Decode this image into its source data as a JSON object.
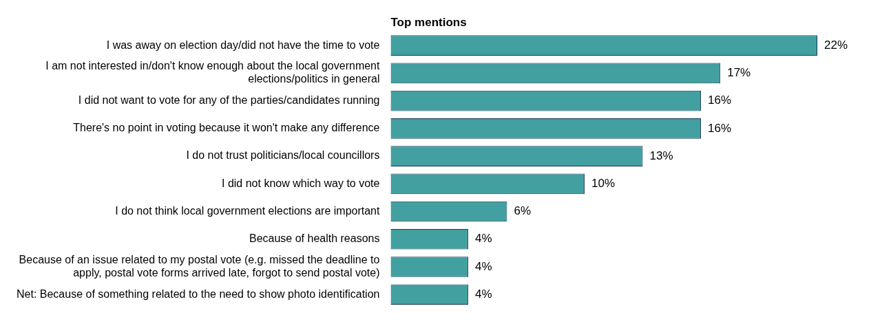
{
  "chart_data": {
    "type": "bar",
    "orientation": "horizontal",
    "subtitle": "Top mentions",
    "categories": [
      "I was away on election day/did not have the time to vote",
      "I am not interested in/don't know enough about the local government elections/politics in general",
      "I did not want to vote for any of the parties/candidates running",
      "There's no point in voting because it won't make any difference",
      "I do not trust politicians/local councillors",
      "I did not know which way to vote",
      "I do not think local government elections are important",
      "Because of health reasons",
      "Because of an issue related to my postal vote (e.g. missed the deadline to apply, postal vote forms arrived late, forgot to send postal vote)",
      "Net: Because of something related to the need to show photo identification"
    ],
    "values": [
      22,
      17,
      16,
      16,
      13,
      10,
      6,
      4,
      4,
      4
    ],
    "value_labels": [
      "22%",
      "17%",
      "16%",
      "16%",
      "13%",
      "10%",
      "6%",
      "4%",
      "4%",
      "4%"
    ],
    "color": "#42a0a0",
    "tick_labels": "y"
  }
}
